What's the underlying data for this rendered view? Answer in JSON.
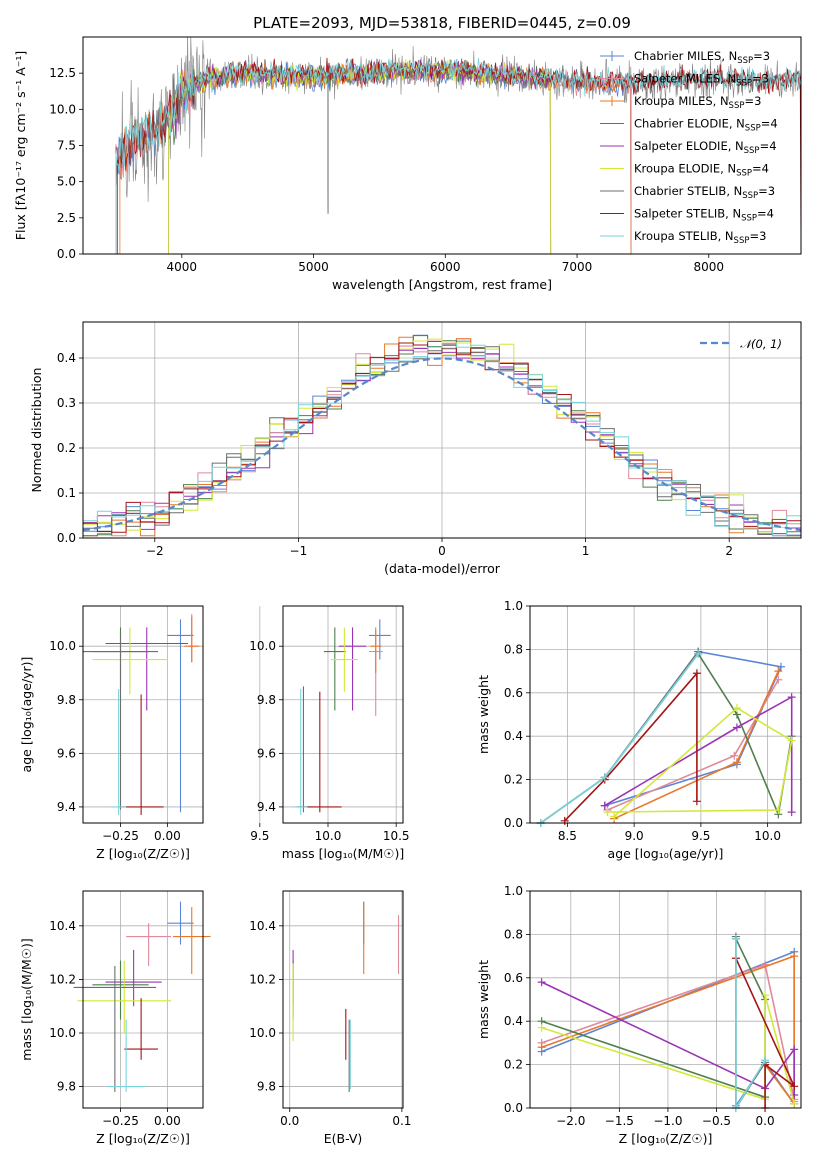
{
  "figure": {
    "title": "PLATE=2093, MJD=53818, FIBERID=0445, z=0.09"
  },
  "colors": {
    "chabrier_miles": "#5b86d6",
    "salpeter_miles": "#e08a9b",
    "kroupa_miles": "#e8782a",
    "chabrier_elodie": "#4f7f4f",
    "salpeter_elodie": "#9b35b5",
    "kroupa_elodie": "#d4e83a",
    "chabrier_stelib": "#6e6e6e",
    "salpeter_stelib": "#a31515",
    "kroupa_stelib": "#78d4dc",
    "normal": "#5588cc"
  },
  "chart_data": [
    {
      "id": "spectrum",
      "type": "line",
      "xlabel": "wavelength [Angstrom, rest frame]",
      "ylabel": "Flux [fλ10⁻¹⁷ erg cm⁻² s⁻¹ A⁻¹]",
      "xlim": [
        3250,
        8700
      ],
      "ylim": [
        0,
        15
      ],
      "xticks": [
        "4000",
        "5000",
        "6000",
        "7000",
        "8000"
      ],
      "yticks": [
        "0.0",
        "2.5",
        "5.0",
        "7.5",
        "10.0",
        "12.5"
      ],
      "continuum": {
        "x": [
          3500,
          3600,
          3700,
          3800,
          3900,
          4000,
          4100,
          4300,
          4500,
          5000,
          5500,
          6000,
          6500,
          7000,
          7500,
          8000,
          8500,
          8700
        ],
        "y": [
          6.5,
          7.6,
          8.2,
          8.5,
          9.3,
          11.3,
          11.8,
          12.3,
          12.5,
          12.2,
          12.6,
          12.7,
          12.3,
          11.9,
          11.8,
          12.0,
          11.9,
          11.9
        ]
      },
      "legend": [
        {
          "label": "Chabrier MILES, N_SSP=3",
          "prefix": "Chabrier MILES, N",
          "sub": "SSP",
          "suffix": "=3",
          "color_key": "chabrier_miles"
        },
        {
          "label": "Salpeter MILES, N_SSP=3",
          "prefix": "Salpeter MILES, N",
          "sub": "SSP",
          "suffix": "=3",
          "color_key": "salpeter_miles"
        },
        {
          "label": "Kroupa MILES, N_SSP=3",
          "prefix": "Kroupa MILES, N",
          "sub": "SSP",
          "suffix": "=3",
          "color_key": "kroupa_miles"
        },
        {
          "label": "Chabrier ELODIE, N_SSP=4",
          "prefix": "Chabrier ELODIE, N",
          "sub": "SSP",
          "suffix": "=4",
          "color_key": "chabrier_elodie"
        },
        {
          "label": "Salpeter ELODIE, N_SSP=4",
          "prefix": "Salpeter ELODIE, N",
          "sub": "SSP",
          "suffix": "=4",
          "color_key": "salpeter_elodie"
        },
        {
          "label": "Kroupa ELODIE, N_SSP=4",
          "prefix": "Kroupa ELODIE, N",
          "sub": "SSP",
          "suffix": "=4",
          "color_key": "kroupa_elodie"
        },
        {
          "label": "Chabrier STELIB, N_SSP=3",
          "prefix": "Chabrier STELIB, N",
          "sub": "SSP",
          "suffix": "=3",
          "color_key": "chabrier_stelib"
        },
        {
          "label": "Salpeter STELIB, N_SSP=4",
          "prefix": "Salpeter STELIB, N",
          "sub": "SSP",
          "suffix": "=4",
          "color_key": "salpeter_stelib"
        },
        {
          "label": "Kroupa STELIB, N_SSP=3",
          "prefix": "Kroupa STELIB, N",
          "sub": "SSP",
          "suffix": "=3",
          "color_key": "kroupa_stelib"
        }
      ]
    },
    {
      "id": "residuals",
      "type": "line",
      "xlabel": "(data-model)/error",
      "ylabel": "Normed distribution",
      "xlim": [
        -2.5,
        2.5
      ],
      "ylim": [
        0,
        0.48
      ],
      "xticks": [
        "−2",
        "−1",
        "0",
        "1",
        "2"
      ],
      "yticks": [
        "0.0",
        "0.1",
        "0.2",
        "0.3",
        "0.4"
      ],
      "legend_label": "𝒩(0, 1)",
      "normal_curve": {
        "mean": 0,
        "sigma": 1
      }
    },
    {
      "id": "age_vs_Z",
      "type": "scatter",
      "xlabel": "Z [log₁₀(Z/Z☉)]",
      "ylabel": "age  [log₁₀(age/yr)]",
      "xticks": [
        "−0.25",
        "0.00"
      ],
      "yticks": [
        "9.4",
        "9.6",
        "9.8",
        "10.0"
      ],
      "errorbars": [
        {
          "x": 0.07,
          "y": 10.04,
          "xerr": 0.07,
          "ylo": 9.38,
          "yhi": 10.1,
          "color_key": "chabrier_miles"
        },
        {
          "x": 0.13,
          "y": 10.0,
          "xerr": 0.02,
          "ylo": 9.94,
          "yhi": 10.12,
          "color_key": "salpeter_miles"
        },
        {
          "x": 0.13,
          "y": 10.0,
          "xerr": 0.04,
          "ylo": 9.94,
          "yhi": 10.11,
          "color_key": "kroupa_miles"
        },
        {
          "x": -0.25,
          "y": 9.98,
          "xerr": 0.15,
          "ylo": 9.85,
          "yhi": 10.07,
          "color_key": "chabrier_elodie"
        },
        {
          "x": -0.11,
          "y": 10.01,
          "xerr": 0.22,
          "ylo": 9.76,
          "yhi": 10.07,
          "color_key": "salpeter_elodie"
        },
        {
          "x": -0.2,
          "y": 9.95,
          "xerr": 0.2,
          "ylo": 9.82,
          "yhi": 10.07,
          "color_key": "kroupa_elodie"
        },
        {
          "x": -0.25,
          "y": 9.98,
          "xerr": 0.2,
          "ylo": 9.39,
          "yhi": 10.05,
          "color_key": "chabrier_stelib"
        },
        {
          "x": -0.14,
          "y": 9.4,
          "xerr": 0.12,
          "ylo": 9.37,
          "yhi": 9.82,
          "color_key": "salpeter_stelib"
        },
        {
          "x": -0.26,
          "y": 9.4,
          "xerr": 0.04,
          "ylo": 9.37,
          "yhi": 9.84,
          "color_key": "kroupa_stelib"
        }
      ]
    },
    {
      "id": "age_vs_mass",
      "type": "scatter",
      "xlabel": "mass [log₁₀(M/M☉)]",
      "ylabel": "",
      "xticks": [
        "9.5",
        "10.0",
        "10.5"
      ],
      "yticks": [
        "9.4",
        "9.6",
        "9.8",
        "10.0"
      ],
      "errorbars": [
        {
          "x": 10.38,
          "y": 10.04,
          "xerr": 0.08,
          "ylo": 9.95,
          "yhi": 10.1,
          "color_key": "chabrier_miles"
        },
        {
          "x": 10.35,
          "y": 9.98,
          "xerr": 0.05,
          "ylo": 9.74,
          "yhi": 10.06,
          "color_key": "salpeter_miles"
        },
        {
          "x": 10.35,
          "y": 10.0,
          "xerr": 0.04,
          "ylo": 9.9,
          "yhi": 10.07,
          "color_key": "kroupa_miles"
        },
        {
          "x": 10.05,
          "y": 9.98,
          "xerr": 0.08,
          "ylo": 9.76,
          "yhi": 10.07,
          "color_key": "chabrier_elodie"
        },
        {
          "x": 10.18,
          "y": 10.0,
          "xerr": 0.1,
          "ylo": 9.76,
          "yhi": 10.07,
          "color_key": "salpeter_elodie"
        },
        {
          "x": 10.12,
          "y": 9.95,
          "xerr": 0.1,
          "ylo": 9.83,
          "yhi": 10.07,
          "color_key": "kroupa_elodie"
        },
        {
          "x": 9.82,
          "y": 9.4,
          "xerr": 0.05,
          "ylo": 9.38,
          "yhi": 9.85,
          "color_key": "chabrier_stelib"
        },
        {
          "x": 9.94,
          "y": 9.4,
          "xerr": 0.16,
          "ylo": 9.38,
          "yhi": 9.83,
          "color_key": "salpeter_stelib"
        },
        {
          "x": 9.8,
          "y": 9.4,
          "xerr": 0.05,
          "ylo": 9.37,
          "yhi": 9.84,
          "color_key": "kroupa_stelib"
        }
      ]
    },
    {
      "id": "weight_vs_age",
      "type": "line",
      "xlabel": "age  [log₁₀(age/yr)]",
      "ylabel": "mass weight",
      "xlim": [
        8.22,
        10.25
      ],
      "ylim": [
        0,
        1
      ],
      "xticks": [
        "8.5",
        "9.0",
        "9.5",
        "10.0"
      ],
      "yticks": [
        "0.0",
        "0.2",
        "0.4",
        "0.6",
        "0.8",
        "1.0"
      ],
      "series": [
        {
          "color_key": "chabrier_miles",
          "x": [
            8.78,
            9.77,
            10.1,
            9.48,
            8.78
          ],
          "y": [
            0.08,
            0.27,
            0.72,
            0.79,
            0.21
          ]
        },
        {
          "color_key": "salpeter_miles",
          "x": [
            8.8,
            9.75,
            10.08
          ],
          "y": [
            0.06,
            0.31,
            0.66
          ]
        },
        {
          "color_key": "kroupa_miles",
          "x": [
            8.85,
            9.77,
            10.08
          ],
          "y": [
            0.02,
            0.28,
            0.7
          ]
        },
        {
          "color_key": "chabrier_elodie",
          "x": [
            8.3,
            8.78,
            9.48,
            9.77,
            10.08,
            10.18
          ],
          "y": [
            0.0,
            0.21,
            0.78,
            0.5,
            0.04,
            0.4
          ]
        },
        {
          "color_key": "salpeter_elodie",
          "x": [
            8.78,
            9.77,
            10.18,
            10.18
          ],
          "y": [
            0.08,
            0.44,
            0.58,
            0.05
          ]
        },
        {
          "color_key": "kroupa_elodie",
          "x": [
            8.85,
            9.77,
            10.18,
            10.08,
            8.8
          ],
          "y": [
            0.03,
            0.53,
            0.38,
            0.06,
            0.05
          ]
        },
        {
          "color_key": "chabrier_stelib",
          "x": [
            8.3,
            8.78,
            9.48
          ],
          "y": [
            0.0,
            0.21,
            0.79
          ]
        },
        {
          "color_key": "salpeter_stelib",
          "x": [
            8.48,
            8.78,
            9.47,
            9.47
          ],
          "y": [
            0.01,
            0.2,
            0.69,
            0.1
          ]
        },
        {
          "color_key": "kroupa_stelib",
          "x": [
            8.3,
            8.78,
            9.48
          ],
          "y": [
            0.0,
            0.21,
            0.78
          ]
        }
      ]
    },
    {
      "id": "mass_vs_Z",
      "type": "scatter",
      "xlabel": "Z [log₁₀(Z/Z☉)]",
      "ylabel": "mass [log₁₀(M/M☉)]",
      "xticks": [
        "−0.25",
        "0.00"
      ],
      "yticks": [
        "9.8",
        "10.0",
        "10.2",
        "10.4"
      ],
      "errorbars": [
        {
          "x": 0.07,
          "y": 10.41,
          "xerr": 0.07,
          "ylo": 10.33,
          "yhi": 10.49,
          "color_key": "chabrier_miles"
        },
        {
          "x": -0.1,
          "y": 10.36,
          "xerr": 0.12,
          "ylo": 10.25,
          "yhi": 10.41,
          "color_key": "salpeter_miles"
        },
        {
          "x": 0.13,
          "y": 10.36,
          "xerr": 0.1,
          "ylo": 10.22,
          "yhi": 10.47,
          "color_key": "kroupa_miles"
        },
        {
          "x": -0.25,
          "y": 10.18,
          "xerr": 0.15,
          "ylo": 10.05,
          "yhi": 10.27,
          "color_key": "chabrier_elodie"
        },
        {
          "x": -0.18,
          "y": 10.19,
          "xerr": 0.15,
          "ylo": 10.1,
          "yhi": 10.31,
          "color_key": "salpeter_elodie"
        },
        {
          "x": -0.23,
          "y": 10.12,
          "xerr": 0.25,
          "ylo": 10.0,
          "yhi": 10.27,
          "color_key": "kroupa_elodie"
        },
        {
          "x": -0.28,
          "y": 10.17,
          "xerr": 0.22,
          "ylo": 9.78,
          "yhi": 10.25,
          "color_key": "chabrier_stelib"
        },
        {
          "x": -0.14,
          "y": 9.94,
          "xerr": 0.09,
          "ylo": 9.9,
          "yhi": 10.13,
          "color_key": "salpeter_stelib"
        },
        {
          "x": -0.22,
          "y": 9.8,
          "xerr": 0.1,
          "ylo": 9.78,
          "yhi": 10.05,
          "color_key": "kroupa_stelib"
        }
      ]
    },
    {
      "id": "mass_vs_EBV",
      "type": "scatter",
      "xlabel": "E(B-V)",
      "ylabel": "",
      "xticks": [
        "0.0",
        "0.1"
      ],
      "yticks": [
        "9.8",
        "10.0",
        "10.2",
        "10.4"
      ],
      "errorbars": [
        {
          "x": 0.066,
          "y": 10.41,
          "xerr": 0.0,
          "ylo": 10.33,
          "yhi": 10.49,
          "color_key": "chabrier_miles"
        },
        {
          "x": 0.097,
          "y": 10.34,
          "xerr": 0.0,
          "ylo": 10.22,
          "yhi": 10.44,
          "color_key": "salpeter_miles"
        },
        {
          "x": 0.066,
          "y": 10.36,
          "xerr": 0.0,
          "ylo": 10.22,
          "yhi": 10.49,
          "color_key": "kroupa_miles"
        },
        {
          "x": 0.003,
          "y": 10.18,
          "xerr": 0.0,
          "ylo": 10.05,
          "yhi": 10.27,
          "color_key": "chabrier_elodie"
        },
        {
          "x": 0.003,
          "y": 10.2,
          "xerr": 0.0,
          "ylo": 10.1,
          "yhi": 10.31,
          "color_key": "salpeter_elodie"
        },
        {
          "x": 0.003,
          "y": 10.1,
          "xerr": 0.0,
          "ylo": 9.97,
          "yhi": 10.26,
          "color_key": "kroupa_elodie"
        },
        {
          "x": 0.053,
          "y": 9.95,
          "xerr": 0.0,
          "ylo": 9.78,
          "yhi": 10.05,
          "color_key": "chabrier_stelib"
        },
        {
          "x": 0.05,
          "y": 10.0,
          "xerr": 0.0,
          "ylo": 9.9,
          "yhi": 10.09,
          "color_key": "salpeter_stelib"
        },
        {
          "x": 0.054,
          "y": 9.9,
          "xerr": 0.0,
          "ylo": 9.79,
          "yhi": 10.05,
          "color_key": "kroupa_stelib"
        }
      ]
    },
    {
      "id": "weight_vs_Z",
      "type": "line",
      "xlabel": "Z [log₁₀(Z/Z☉)]",
      "ylabel": "mass weight",
      "xlim": [
        -2.42,
        0.37
      ],
      "ylim": [
        0,
        1
      ],
      "xticks": [
        "−2.0",
        "−1.5",
        "−1.0",
        "−0.5",
        "0.0"
      ],
      "yticks": [
        "0.0",
        "0.2",
        "0.4",
        "0.6",
        "0.8",
        "1.0"
      ],
      "series": [
        {
          "color_key": "chabrier_miles",
          "x": [
            -2.3,
            0.3,
            0.3,
            0.0,
            -0.3
          ],
          "y": [
            0.26,
            0.72,
            0.02,
            0.21,
            0.01
          ]
        },
        {
          "color_key": "salpeter_miles",
          "x": [
            -2.3,
            0.0,
            0.3,
            0.3
          ],
          "y": [
            0.3,
            0.66,
            0.04,
            0.03
          ]
        },
        {
          "color_key": "kroupa_miles",
          "x": [
            -2.3,
            0.3,
            0.3,
            0.0
          ],
          "y": [
            0.28,
            0.7,
            0.02,
            0.2
          ]
        },
        {
          "color_key": "chabrier_elodie",
          "x": [
            -2.3,
            0.0,
            0.0,
            -0.3
          ],
          "y": [
            0.4,
            0.05,
            0.5,
            0.78
          ]
        },
        {
          "color_key": "salpeter_elodie",
          "x": [
            -2.3,
            0.0,
            0.3,
            0.3
          ],
          "y": [
            0.58,
            0.09,
            0.27,
            0.06
          ]
        },
        {
          "color_key": "kroupa_elodie",
          "x": [
            -2.3,
            0.0,
            0.0,
            0.3
          ],
          "y": [
            0.37,
            0.04,
            0.52,
            0.02
          ]
        },
        {
          "color_key": "chabrier_stelib",
          "x": [
            -0.3,
            -0.3,
            0.0
          ],
          "y": [
            0.79,
            0.0,
            0.21
          ]
        },
        {
          "color_key": "salpeter_stelib",
          "x": [
            -0.3,
            0.3,
            0.0,
            0.0
          ],
          "y": [
            0.69,
            0.1,
            0.2,
            0.0
          ]
        },
        {
          "color_key": "kroupa_stelib",
          "x": [
            -0.3,
            -0.3,
            0.0
          ],
          "y": [
            0.78,
            0.0,
            0.22
          ]
        }
      ]
    }
  ]
}
